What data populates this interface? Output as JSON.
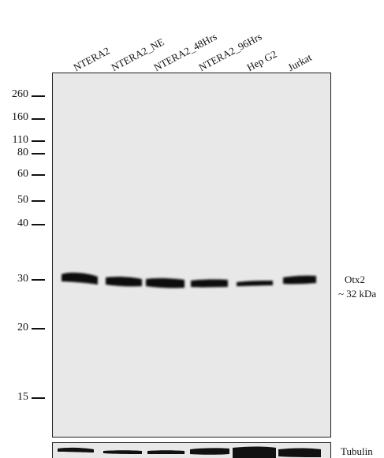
{
  "lanes": [
    "NTERA2",
    "NTERA2_NE",
    "NTERA2_48Hrs",
    "NTERA2_96Hrs",
    "Hep G2",
    "Jurkat"
  ],
  "markers": [
    "260",
    "160",
    "110",
    "80",
    "60",
    "50",
    "40",
    "30",
    "20",
    "15"
  ],
  "band": {
    "name": "Otx2",
    "size": "~ 32 kDa"
  },
  "loading_control": "Tubulin"
}
